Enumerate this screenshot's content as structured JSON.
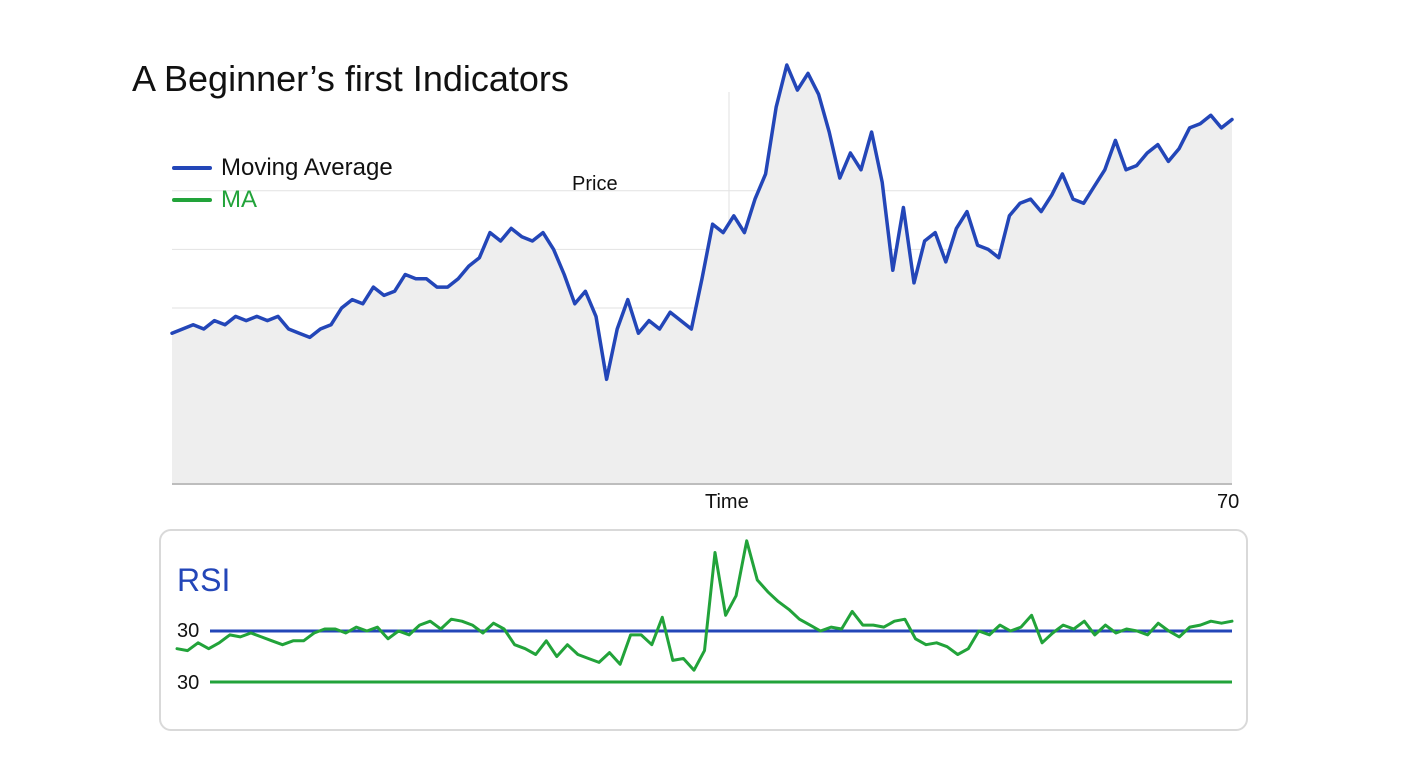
{
  "title": "A Beginner’s first Indicators",
  "colors": {
    "price": "#2346b8",
    "ma": "#22a33a",
    "fill": "#eeeeee",
    "grid": "#e2e2e2",
    "axis": "#bdbdbd"
  },
  "chart_data": [
    {
      "type": "area",
      "title": "A Beginner’s first Indicators",
      "ylabel": "Price",
      "xlabel": "Time",
      "x_tick_labels": [
        "70"
      ],
      "legend": {
        "placement": "top-left",
        "entries": [
          {
            "label": "Moving Average",
            "color": "#2346b8"
          },
          {
            "label": "MA",
            "color": "#22a33a"
          }
        ]
      },
      "grid": true,
      "ylim": [
        0,
        100
      ],
      "series": [
        {
          "name": "Moving Average",
          "color": "#2346b8",
          "x": [
            0,
            2,
            4,
            6,
            8,
            10,
            12,
            14,
            16,
            18,
            20,
            22,
            24,
            26,
            28,
            30,
            32,
            34,
            36,
            38,
            40,
            42,
            44,
            46,
            48,
            50,
            52,
            54,
            56,
            58,
            60,
            62,
            64,
            66,
            68,
            70,
            72,
            74,
            76,
            78,
            80,
            82,
            84,
            86,
            88,
            90,
            92,
            94,
            96,
            98,
            100,
            102,
            104,
            106,
            108,
            110,
            112,
            114,
            116,
            118,
            120,
            122,
            124,
            126,
            128,
            130,
            132,
            134,
            136,
            138,
            140,
            142,
            144,
            146,
            148,
            150,
            152,
            154,
            156,
            158,
            160,
            162,
            164,
            166,
            168,
            170,
            172,
            174,
            176,
            178,
            180,
            182,
            184,
            186,
            188,
            190,
            192,
            194,
            196,
            198,
            200
          ],
          "values": [
            36,
            37,
            38,
            37,
            39,
            38,
            40,
            39,
            40,
            39,
            40,
            37,
            36,
            35,
            37,
            38,
            42,
            44,
            43,
            47,
            45,
            46,
            50,
            49,
            49,
            47,
            47,
            49,
            52,
            54,
            60,
            58,
            61,
            59,
            58,
            60,
            56,
            50,
            43,
            46,
            40,
            25,
            37,
            44,
            36,
            39,
            37,
            41,
            39,
            37,
            49,
            62,
            60,
            64,
            60,
            68,
            74,
            90,
            100,
            94,
            98,
            93,
            84,
            73,
            79,
            75,
            84,
            72,
            51,
            66,
            48,
            58,
            60,
            53,
            61,
            65,
            57,
            56,
            54,
            64,
            67,
            68,
            65,
            69,
            74,
            68,
            67,
            71,
            75,
            82,
            75,
            76,
            79,
            81,
            77,
            80,
            85,
            86,
            88,
            85,
            87
          ]
        }
      ]
    },
    {
      "type": "line",
      "title": "RSI",
      "y_tick_labels": [
        "30",
        "30"
      ],
      "grid": false,
      "ylim": [
        0,
        100
      ],
      "reference_lines": [
        {
          "label": "30",
          "value": 52,
          "color": "#2346b8"
        },
        {
          "label": "30",
          "value": 26,
          "color": "#22a33a"
        }
      ],
      "series": [
        {
          "color": "#22a33a",
          "x": [
            0,
            1,
            2,
            3,
            4,
            5,
            6,
            7,
            8,
            9,
            10,
            11,
            12,
            13,
            14,
            15,
            16,
            17,
            18,
            19,
            20,
            21,
            22,
            23,
            24,
            25,
            26,
            27,
            28,
            29,
            30,
            31,
            32,
            33,
            34,
            35,
            36,
            37,
            38,
            39,
            40,
            41,
            42,
            43,
            44,
            45,
            46,
            47,
            48,
            49,
            50,
            51,
            52,
            53,
            54,
            55,
            56,
            57,
            58,
            59,
            60,
            61,
            62,
            63,
            64,
            65,
            66,
            67,
            68,
            69,
            70,
            71,
            72,
            73,
            74,
            75,
            76,
            77,
            78,
            79,
            80,
            81,
            82,
            83,
            84,
            85,
            86,
            87,
            88,
            89,
            90,
            91,
            92,
            93,
            94,
            95,
            96,
            97,
            98,
            99,
            100
          ],
          "values": [
            43,
            42,
            46,
            43,
            46,
            50,
            49,
            51,
            49,
            47,
            45,
            47,
            47,
            51,
            53,
            53,
            51,
            54,
            52,
            54,
            48,
            52,
            50,
            55,
            57,
            53,
            58,
            57,
            55,
            51,
            56,
            53,
            45,
            43,
            40,
            47,
            39,
            45,
            40,
            38,
            36,
            41,
            35,
            50,
            50,
            45,
            59,
            37,
            38,
            32,
            42,
            92,
            60,
            70,
            98,
            78,
            72,
            67,
            63,
            58,
            55,
            52,
            54,
            53,
            62,
            55,
            55,
            54,
            57,
            58,
            48,
            45,
            46,
            44,
            40,
            43,
            52,
            50,
            55,
            52,
            54,
            60,
            46,
            51,
            55,
            53,
            57,
            50,
            55,
            51,
            53,
            52,
            50,
            56,
            52,
            49,
            54,
            55,
            57,
            56,
            57
          ]
        }
      ]
    }
  ]
}
